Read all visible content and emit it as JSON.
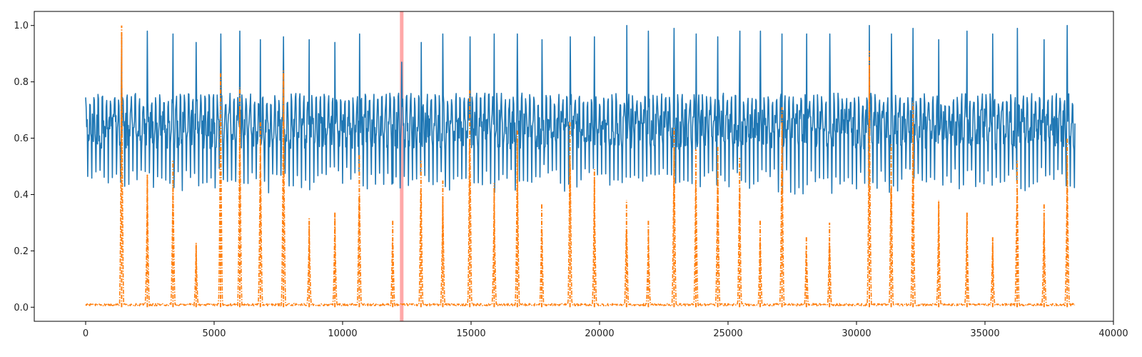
{
  "chart_data": {
    "type": "line",
    "title": "",
    "xlabel": "",
    "ylabel": "",
    "xlim": [
      -2000,
      40000
    ],
    "ylim": [
      -0.05,
      1.05
    ],
    "x_ticks": [
      0,
      5000,
      10000,
      15000,
      20000,
      25000,
      30000,
      35000,
      40000
    ],
    "y_ticks": [
      0.0,
      0.2,
      0.4,
      0.6,
      0.8,
      1.0
    ],
    "x_tick_labels": [
      "0",
      "5000",
      "10000",
      "15000",
      "20000",
      "25000",
      "30000",
      "35000",
      "40000"
    ],
    "y_tick_labels": [
      "0.0",
      "0.2",
      "0.4",
      "0.6",
      "0.8",
      "1.0"
    ],
    "grid": false,
    "legend": "none",
    "x_extent": [
      0,
      38500
    ],
    "series": [
      {
        "color": "#1f77b4",
        "style": "solid",
        "description_kind": "oscillating signal",
        "baseline": 0.62,
        "band_low": 0.4,
        "band_high": 0.76,
        "oscillation_period": 160,
        "spikes": [
          [
            1400,
            0.96
          ],
          [
            2400,
            0.98
          ],
          [
            3400,
            0.97
          ],
          [
            4300,
            0.94
          ],
          [
            5250,
            0.97
          ],
          [
            6000,
            0.98
          ],
          [
            6800,
            0.95
          ],
          [
            7700,
            0.96
          ],
          [
            8700,
            0.95
          ],
          [
            9700,
            0.94
          ],
          [
            10650,
            0.97
          ],
          [
            11950,
            0.44
          ],
          [
            12300,
            0.87
          ],
          [
            13050,
            0.94
          ],
          [
            13900,
            0.97
          ],
          [
            14950,
            0.96
          ],
          [
            15900,
            0.97
          ],
          [
            16800,
            0.97
          ],
          [
            17750,
            0.95
          ],
          [
            18850,
            0.96
          ],
          [
            19800,
            0.96
          ],
          [
            21050,
            1.0
          ],
          [
            21900,
            0.98
          ],
          [
            22900,
            0.99
          ],
          [
            23750,
            0.97
          ],
          [
            24600,
            0.96
          ],
          [
            25450,
            0.98
          ],
          [
            26250,
            0.98
          ],
          [
            27100,
            0.97
          ],
          [
            28050,
            0.97
          ],
          [
            28950,
            0.97
          ],
          [
            30500,
            1.0
          ],
          [
            31350,
            0.97
          ],
          [
            32200,
            0.99
          ],
          [
            33200,
            0.95
          ],
          [
            34300,
            0.98
          ],
          [
            35300,
            0.97
          ],
          [
            36250,
            0.99
          ],
          [
            37300,
            0.95
          ],
          [
            38200,
            1.0
          ]
        ]
      },
      {
        "color": "#ff7f0e",
        "style": "dash-dot",
        "description_kind": "spike train",
        "baseline": 0.005,
        "spikes": [
          [
            1400,
            1.0
          ],
          [
            2400,
            0.47
          ],
          [
            3400,
            0.52
          ],
          [
            4300,
            0.23
          ],
          [
            5250,
            0.83
          ],
          [
            6000,
            0.78
          ],
          [
            6800,
            0.66
          ],
          [
            7700,
            0.84
          ],
          [
            8700,
            0.32
          ],
          [
            9700,
            0.34
          ],
          [
            10650,
            0.54
          ],
          [
            11950,
            0.31
          ],
          [
            13050,
            0.52
          ],
          [
            13900,
            0.45
          ],
          [
            14950,
            0.77
          ],
          [
            15900,
            0.44
          ],
          [
            16800,
            0.63
          ],
          [
            17750,
            0.37
          ],
          [
            18850,
            0.66
          ],
          [
            19800,
            0.49
          ],
          [
            21050,
            0.38
          ],
          [
            21900,
            0.31
          ],
          [
            22900,
            0.64
          ],
          [
            23750,
            0.56
          ],
          [
            24600,
            0.57
          ],
          [
            25450,
            0.53
          ],
          [
            26250,
            0.31
          ],
          [
            27100,
            0.71
          ],
          [
            28050,
            0.25
          ],
          [
            28950,
            0.3
          ],
          [
            30500,
            0.91
          ],
          [
            31350,
            0.58
          ],
          [
            32200,
            0.73
          ],
          [
            33200,
            0.38
          ],
          [
            34300,
            0.34
          ],
          [
            35300,
            0.25
          ],
          [
            36250,
            0.52
          ],
          [
            37300,
            0.37
          ],
          [
            38200,
            0.6
          ]
        ]
      }
    ],
    "vertical_marker": {
      "x": 12300,
      "color": "#ff9999"
    }
  }
}
